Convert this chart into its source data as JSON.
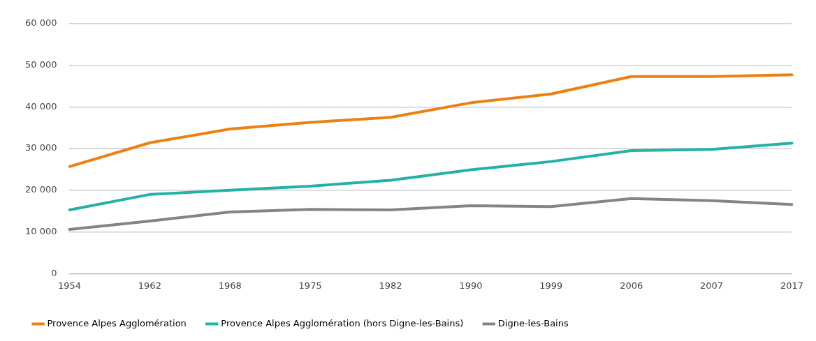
{
  "chart_data": {
    "type": "line",
    "categories": [
      "1954",
      "1962",
      "1968",
      "1975",
      "1982",
      "1990",
      "1999",
      "2006",
      "2007",
      "2017"
    ],
    "series": [
      {
        "name": "Provence Alpes Agglomération",
        "color": "#ee8012",
        "values": [
          25700,
          31400,
          34700,
          36300,
          37500,
          41000,
          43100,
          47300,
          47300,
          47700
        ]
      },
      {
        "name": "Provence Alpes Agglomération (hors Digne-les-Bains)",
        "color": "#22b2a6",
        "values": [
          15300,
          19000,
          20000,
          21000,
          22400,
          24900,
          26900,
          29500,
          29800,
          31300
        ]
      },
      {
        "name": "Digne-les-Bains",
        "color": "#848484",
        "values": [
          10600,
          12600,
          14800,
          15400,
          15300,
          16300,
          16100,
          18000,
          17500,
          16600
        ]
      }
    ],
    "ylim": [
      0,
      60000
    ],
    "yticks": [
      0,
      {
        "value": 10000,
        "label": "10 000"
      },
      {
        "value": 20000,
        "label": "20 000"
      },
      {
        "value": 30000,
        "label": "30 000"
      },
      {
        "value": 40000,
        "label": "40 000"
      },
      {
        "value": 50000,
        "label": "50 000"
      },
      {
        "value": 60000,
        "label": "60 000"
      }
    ],
    "grid": "y",
    "legend": "bottom",
    "marker": "none",
    "line_style": "solid"
  }
}
